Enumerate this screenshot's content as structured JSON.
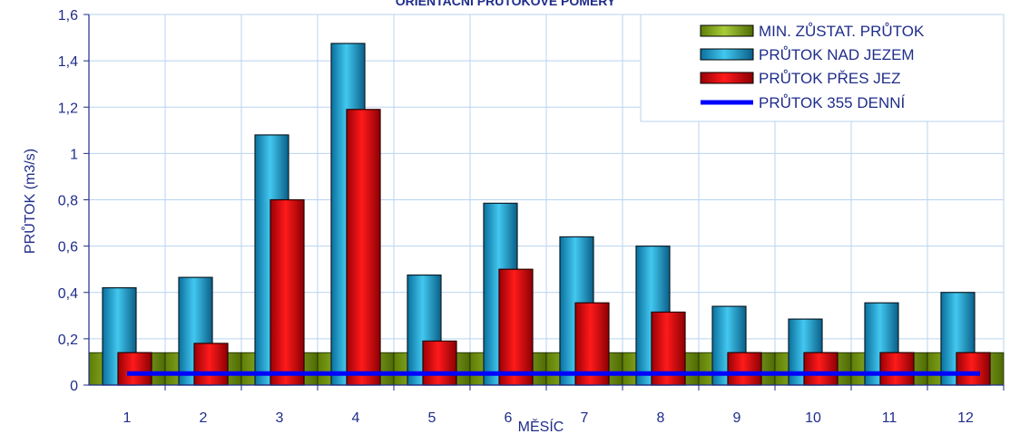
{
  "chart_data": {
    "type": "bar",
    "title": "ORIENTAČNÍ PRŮTOKOVÉ POMĚRY",
    "xlabel": "MĚSÍC",
    "ylabel": "PRŮTOK (m3/s)",
    "categories": [
      "1",
      "2",
      "3",
      "4",
      "5",
      "6",
      "7",
      "8",
      "9",
      "10",
      "11",
      "12"
    ],
    "ylim": [
      0,
      1.6
    ],
    "yticks": [
      "0",
      "0,2",
      "0,4",
      "0,6",
      "0,8",
      "1",
      "1,2",
      "1,4",
      "1,6"
    ],
    "grid": true,
    "legend_position": "top-right",
    "series": [
      {
        "name": "MIN. ZŮSTAT. PRŮTOK",
        "kind": "bar",
        "color": "#8db21e",
        "values": [
          0.14,
          0.14,
          0.14,
          0.14,
          0.14,
          0.14,
          0.14,
          0.14,
          0.14,
          0.14,
          0.14,
          0.14
        ]
      },
      {
        "name": "PRŮTOK NAD JEZEM",
        "kind": "bar",
        "color": "#1aa7d6",
        "values": [
          0.42,
          0.465,
          1.08,
          1.475,
          0.475,
          0.785,
          0.64,
          0.6,
          0.34,
          0.285,
          0.355,
          0.4
        ]
      },
      {
        "name": "PRŮTOK PŘES JEZ",
        "kind": "bar",
        "color": "#e8000b",
        "values": [
          0.14,
          0.18,
          0.8,
          1.19,
          0.19,
          0.5,
          0.355,
          0.315,
          0.14,
          0.14,
          0.14,
          0.14
        ]
      },
      {
        "name": "PRŮTOK 355 DENNÍ",
        "kind": "line",
        "color": "#0000ff",
        "values": [
          0.05,
          0.05,
          0.05,
          0.05,
          0.05,
          0.05,
          0.05,
          0.05,
          0.05,
          0.05,
          0.05,
          0.05
        ]
      }
    ]
  }
}
